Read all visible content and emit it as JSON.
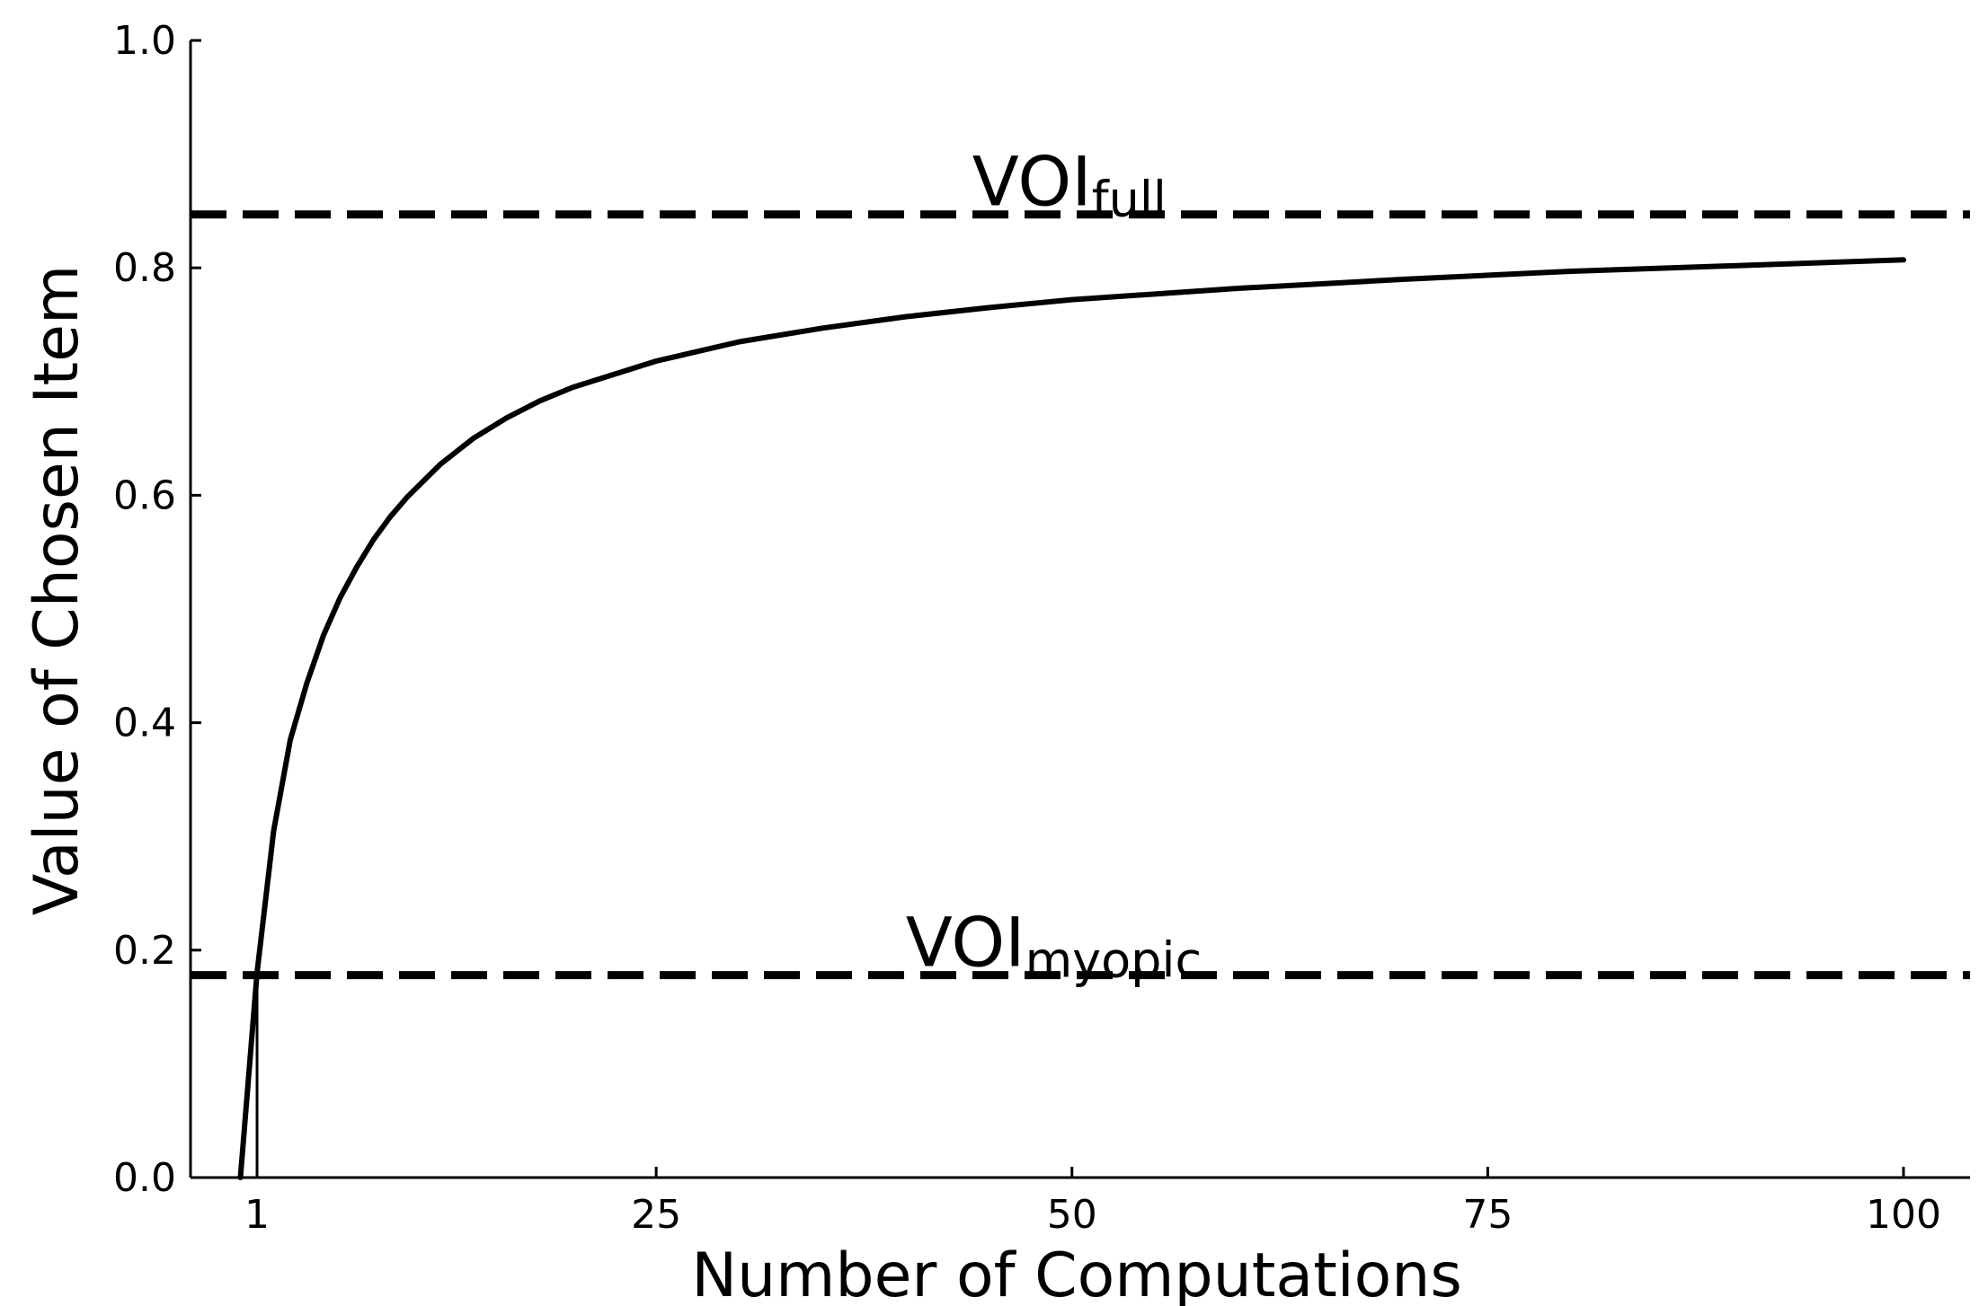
{
  "chart_data": {
    "type": "line",
    "title": "",
    "xlabel": "Number of Computations",
    "ylabel": "Value of Chosen Item",
    "xlim": [
      -3,
      104
    ],
    "ylim": [
      0.0,
      1.0
    ],
    "x_ticks": [
      1,
      25,
      50,
      75,
      100
    ],
    "x_tick_labels": [
      "1",
      "25",
      "50",
      "75",
      "100"
    ],
    "y_ticks": [
      0.0,
      0.2,
      0.4,
      0.6,
      0.8,
      1.0
    ],
    "y_tick_labels": [
      "0.0",
      "0.2",
      "0.4",
      "0.6",
      "0.8",
      "1.0"
    ],
    "grid": false,
    "series": [
      {
        "style": "solid",
        "color": "#000000",
        "x": [
          0,
          1,
          2,
          3,
          4,
          5,
          6,
          7,
          8,
          9,
          10,
          12,
          14,
          16,
          18,
          20,
          25,
          30,
          35,
          40,
          45,
          50,
          60,
          70,
          80,
          90,
          100
        ],
        "y": [
          0.0,
          0.18,
          0.305,
          0.385,
          0.435,
          0.477,
          0.51,
          0.537,
          0.561,
          0.581,
          0.598,
          0.627,
          0.65,
          0.668,
          0.683,
          0.695,
          0.718,
          0.735,
          0.747,
          0.757,
          0.765,
          0.772,
          0.782,
          0.79,
          0.797,
          0.802,
          0.807
        ]
      }
    ],
    "reference_lines": [
      {
        "y": 0.847,
        "style": "dashed",
        "label_main": "VOI",
        "label_sub": "full",
        "label_x": 44
      },
      {
        "y": 0.178,
        "style": "dashed",
        "label_main": "VOI",
        "label_sub": "myopic",
        "label_x": 40
      }
    ],
    "vertical_marker": {
      "x": 1,
      "y_from": 0.0,
      "y_to": 0.18
    }
  }
}
